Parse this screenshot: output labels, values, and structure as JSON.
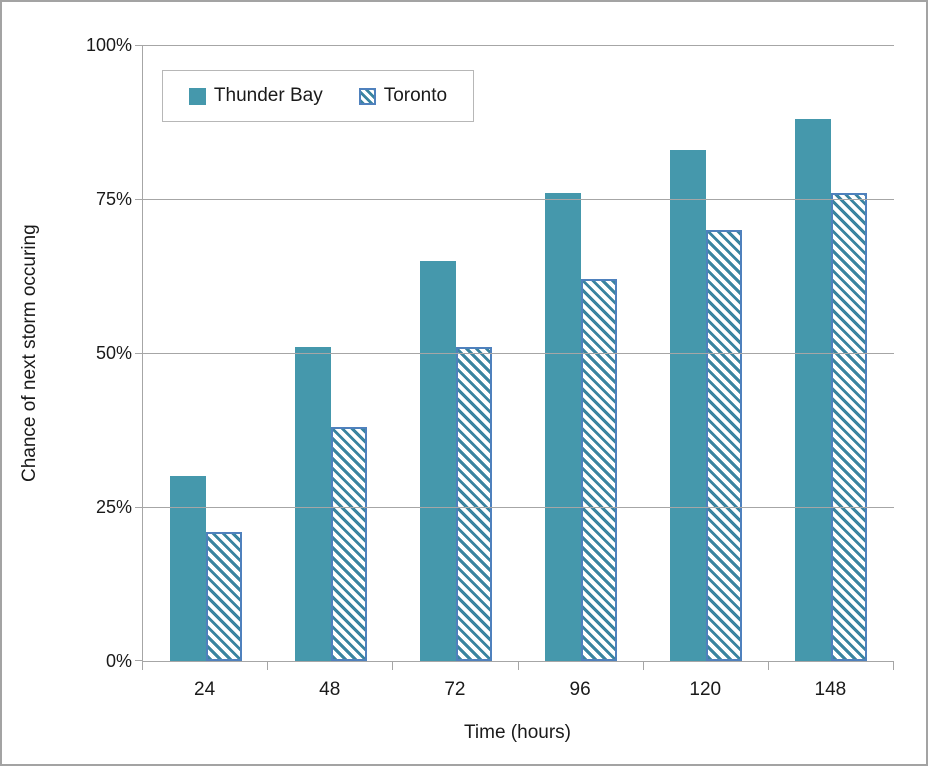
{
  "chart_data": {
    "type": "bar",
    "title": "",
    "xlabel": "Time (hours)",
    "ylabel": "Chance of next storm occuring",
    "categories": [
      "24",
      "48",
      "72",
      "96",
      "120",
      "148"
    ],
    "series": [
      {
        "name": "Thunder Bay",
        "style": "solid",
        "values": [
          30,
          51,
          65,
          76,
          83,
          88
        ]
      },
      {
        "name": "Toronto",
        "style": "hatched",
        "values": [
          21,
          38,
          51,
          62,
          70,
          76
        ]
      }
    ],
    "ylim": [
      0,
      100
    ],
    "yticks": [
      0,
      25,
      50,
      75,
      100
    ],
    "ytick_labels": [
      "0%",
      "25%",
      "50%",
      "75%",
      "100%"
    ],
    "grid": "horizontal-major",
    "legend_position": "top-left-inside",
    "colors": {
      "solid_fill": "#4598ac",
      "hatch_stripe": "#3a84a0",
      "hatch_border": "#4f81bd",
      "gridline": "#a6a6a6",
      "axis_line": "#a6a6a6",
      "frame_border": "#a3a3a3",
      "text": "#1a1a1a"
    }
  }
}
